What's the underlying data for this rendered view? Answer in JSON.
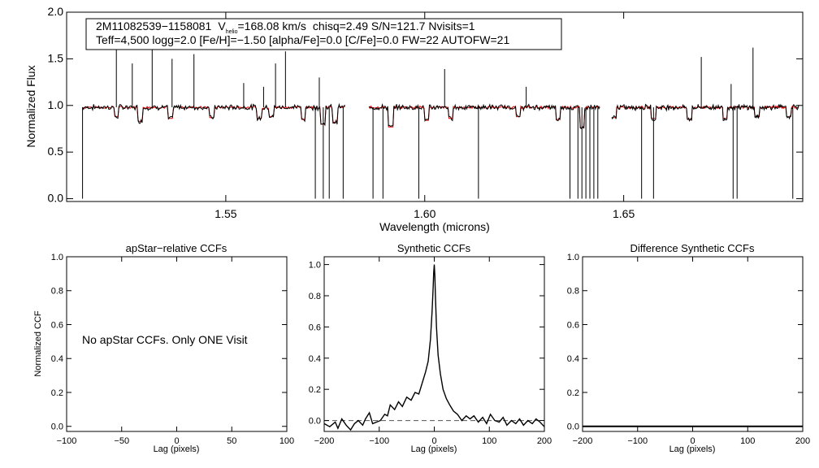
{
  "chart_data": [
    {
      "type": "line",
      "panel": "spectrum",
      "xlabel": "Wavelength (microns)",
      "ylabel": "Normalized Flux",
      "xlim": [
        1.51,
        1.695
      ],
      "ylim": [
        -0.03,
        2.0
      ],
      "xticks": [
        "1.55",
        "1.60",
        "1.65"
      ],
      "yticks": [
        "0.0",
        "0.5",
        "1.0",
        "1.5",
        "2.0"
      ],
      "info": {
        "star_id": "2M11082539−1158081",
        "vhelio_prefix": "V",
        "vhelio_sub": "helio",
        "vhelio_value": "=168.08 km/s",
        "stats": "chisq=2.49  S/N=121.7  Nvisits=1",
        "params": "Teff=4,500 logg=2.0 [Fe/H]=−1.50 [alpha/Fe]=0.0 [C/Fe]=0.0 FW=22 AUTOFW=21"
      },
      "continuum": 0.98,
      "chips": [
        [
          1.514,
          1.58
        ],
        [
          1.586,
          1.644
        ],
        [
          1.647,
          1.694
        ]
      ],
      "observed_spikes": [
        [
          1.5225,
          1.76
        ],
        [
          1.5265,
          1.45
        ],
        [
          1.5315,
          1.64
        ],
        [
          1.5365,
          1.5
        ],
        [
          1.542,
          1.55
        ],
        [
          1.5545,
          1.24
        ],
        [
          1.5595,
          1.2
        ],
        [
          1.5625,
          1.45
        ],
        [
          1.565,
          1.58
        ],
        [
          1.5735,
          1.3
        ],
        [
          1.605,
          1.39
        ],
        [
          1.6255,
          1.2
        ],
        [
          1.6695,
          1.52
        ],
        [
          1.677,
          1.23
        ],
        [
          1.6825,
          1.62
        ]
      ],
      "observed_drops": [
        [
          1.514,
          0.0
        ],
        [
          1.5725,
          0.0
        ],
        [
          1.5745,
          0.0
        ],
        [
          1.576,
          0.0
        ],
        [
          1.5795,
          0.0
        ],
        [
          1.587,
          0.0
        ],
        [
          1.5895,
          0.0
        ],
        [
          1.5985,
          0.0
        ],
        [
          1.6135,
          0.0
        ],
        [
          1.6365,
          0.0
        ],
        [
          1.6385,
          0.0
        ],
        [
          1.6395,
          0.0
        ],
        [
          1.6405,
          0.0
        ],
        [
          1.6415,
          0.0
        ],
        [
          1.6425,
          0.0
        ],
        [
          1.6435,
          0.0
        ],
        [
          1.6545,
          0.0
        ],
        [
          1.6575,
          0.0
        ],
        [
          1.6775,
          0.0
        ],
        [
          1.6785,
          0.0
        ],
        [
          1.6925,
          0.0
        ]
      ],
      "model_dips": [
        [
          1.5225,
          0.88
        ],
        [
          1.5285,
          0.83
        ],
        [
          1.536,
          0.86
        ],
        [
          1.5465,
          0.87
        ],
        [
          1.5585,
          0.86
        ],
        [
          1.5615,
          0.88
        ],
        [
          1.5695,
          0.85
        ],
        [
          1.5745,
          0.8
        ],
        [
          1.5775,
          0.82
        ],
        [
          1.5915,
          0.77
        ],
        [
          1.6005,
          0.84
        ],
        [
          1.6065,
          0.86
        ],
        [
          1.6235,
          0.88
        ],
        [
          1.6335,
          0.85
        ],
        [
          1.6395,
          0.76
        ],
        [
          1.6475,
          0.87
        ],
        [
          1.6575,
          0.86
        ],
        [
          1.6665,
          0.85
        ],
        [
          1.6755,
          0.86
        ],
        [
          1.6835,
          0.88
        ],
        [
          1.6915,
          0.88
        ]
      ],
      "series_colors": {
        "observed": "#000000",
        "model": "#dd0000"
      }
    },
    {
      "type": "line",
      "panel": "apstar-ccf",
      "title": "apStar−relative CCFs",
      "xlabel": "Lag (pixels)",
      "ylabel": "Normalized CCF",
      "xlim": [
        -100,
        100
      ],
      "ylim": [
        -0.03,
        1.0
      ],
      "xticks": [
        "−100",
        "−50",
        "0",
        "50",
        "100"
      ],
      "yticks": [
        "0.0",
        "0.2",
        "0.4",
        "0.6",
        "0.8",
        "1.0"
      ],
      "annotation": "No apStar CCFs.  Only ONE Visit",
      "series": []
    },
    {
      "type": "line",
      "panel": "synthetic-ccf",
      "title": "Synthetic CCFs",
      "xlabel": "Lag (pixels)",
      "ylabel": "",
      "xlim": [
        -200,
        200
      ],
      "ylim": [
        -0.07,
        1.05
      ],
      "xticks": [
        "−200",
        "−100",
        "0",
        "100",
        "200"
      ],
      "yticks": [
        "0.0",
        "0.2",
        "0.4",
        "0.6",
        "0.8",
        "1.0"
      ],
      "reference_line": 0.0,
      "series": [
        {
          "name": "synthetic CCF",
          "x": [
            -200,
            -190,
            -180,
            -175,
            -168,
            -160,
            -152,
            -145,
            -138,
            -130,
            -125,
            -118,
            -112,
            -105,
            -98,
            -90,
            -85,
            -80,
            -72,
            -65,
            -58,
            -50,
            -42,
            -35,
            -28,
            -22,
            -16,
            -11,
            -7,
            -4,
            -2,
            -1,
            0,
            1,
            2,
            4,
            7,
            11,
            16,
            22,
            28,
            35,
            42,
            50,
            58,
            65,
            72,
            80,
            88,
            95,
            102,
            110,
            118,
            125,
            132,
            140,
            148,
            155,
            162,
            170,
            178,
            185,
            192,
            200
          ],
          "values": [
            -0.02,
            -0.04,
            -0.01,
            -0.05,
            0.01,
            -0.03,
            -0.06,
            -0.02,
            0.0,
            -0.03,
            0.01,
            0.05,
            -0.02,
            -0.01,
            0.0,
            0.04,
            0.03,
            0.1,
            0.07,
            0.12,
            0.09,
            0.15,
            0.13,
            0.18,
            0.17,
            0.24,
            0.31,
            0.38,
            0.52,
            0.7,
            0.85,
            0.95,
            1.0,
            0.93,
            0.8,
            0.6,
            0.42,
            0.3,
            0.2,
            0.14,
            0.1,
            0.06,
            0.04,
            0.0,
            0.03,
            0.01,
            0.03,
            -0.01,
            0.02,
            -0.02,
            0.04,
            0.0,
            -0.01,
            0.02,
            -0.03,
            0.0,
            -0.02,
            0.01,
            -0.03,
            0.0,
            -0.02,
            0.01,
            -0.01,
            -0.04
          ]
        }
      ]
    },
    {
      "type": "line",
      "panel": "difference-ccf",
      "title": "Difference Synthetic CCFs",
      "xlabel": "Lag (pixels)",
      "ylabel": "",
      "xlim": [
        -200,
        200
      ],
      "ylim": [
        -0.03,
        1.0
      ],
      "xticks": [
        "−200",
        "−100",
        "0",
        "100",
        "200"
      ],
      "yticks": [
        "0.0",
        "0.2",
        "0.4",
        "0.6",
        "0.8",
        "1.0"
      ],
      "series": [
        {
          "name": "difference",
          "x": [
            -200,
            200
          ],
          "values": [
            0.0,
            0.0
          ]
        }
      ]
    }
  ]
}
